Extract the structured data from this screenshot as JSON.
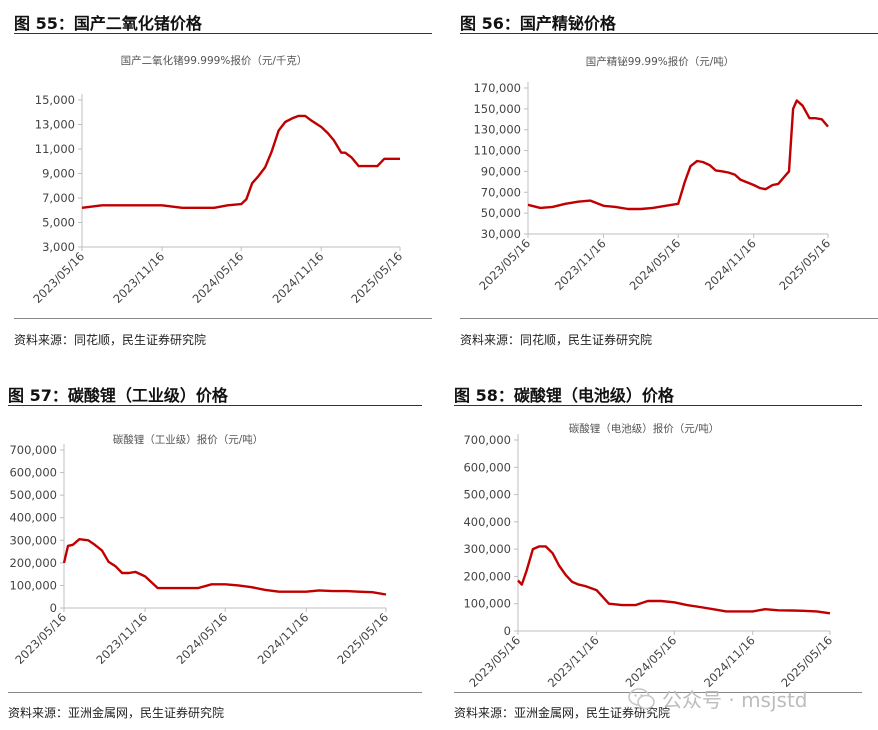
{
  "figures": [
    {
      "fig_title": "图 55：国产二氧化锗价格",
      "source": "资料来源：同花顺，民生证券研究院",
      "chart_data": {
        "type": "line",
        "title": "国产二氧化锗99.999%报价（元/千克）",
        "xlabel": "",
        "ylabel": "",
        "ylim": [
          3000,
          15000
        ],
        "yticks": [
          3000,
          5000,
          7000,
          9000,
          11000,
          13000,
          15000
        ],
        "ytick_labels": [
          "3,000",
          "5,000",
          "7,000",
          "9,000",
          "11,000",
          "13,000",
          "15,000"
        ],
        "xtick_labels": [
          "2023/05/16",
          "2023/11/16",
          "2024/05/16",
          "2024/11/16",
          "2025/05/16"
        ],
        "x_start": "2023/05/16",
        "x_end": "2025/05/16",
        "grid": false,
        "color": "#c00000",
        "series": [
          {
            "x": [
              "2023/05/16",
              "2023/07/01",
              "2023/08/15",
              "2023/10/01",
              "2023/11/16",
              "2024/01/01",
              "2024/02/15",
              "2024/03/15",
              "2024/04/15",
              "2024/05/16",
              "2024/05/28",
              "2024/06/10",
              "2024/06/25",
              "2024/07/10",
              "2024/07/25",
              "2024/08/10",
              "2024/08/25",
              "2024/09/10",
              "2024/09/25",
              "2024/10/10",
              "2024/10/25",
              "2024/11/16",
              "2024/12/01",
              "2024/12/15",
              "2025/01/01",
              "2025/01/10",
              "2025/01/25",
              "2025/02/10",
              "2025/02/25",
              "2025/03/10",
              "2025/03/25",
              "2025/04/10",
              "2025/04/25",
              "2025/05/01",
              "2025/05/16"
            ],
            "y": [
              6200,
              6400,
              6400,
              6400,
              6400,
              6200,
              6200,
              6200,
              6400,
              6500,
              6900,
              8200,
              8800,
              9500,
              10800,
              12500,
              13200,
              13500,
              13700,
              13700,
              13300,
              12800,
              12300,
              11700,
              10700,
              10700,
              10300,
              9600,
              9600,
              9600,
              9600,
              10200,
              10200,
              10200,
              10200
            ]
          }
        ]
      }
    },
    {
      "fig_title": "图 56：国产精铋价格",
      "source": "资料来源：同花顺，民生证券研究院",
      "chart_data": {
        "type": "line",
        "title": "国产精铋99.99%报价（元/吨）",
        "xlabel": "",
        "ylabel": "",
        "ylim": [
          30000,
          170000
        ],
        "yticks": [
          30000,
          50000,
          70000,
          90000,
          110000,
          130000,
          150000,
          170000
        ],
        "ytick_labels": [
          "30,000",
          "50,000",
          "70,000",
          "90,000",
          "110,000",
          "130,000",
          "150,000",
          "170,000"
        ],
        "xtick_labels": [
          "2023/05/16",
          "2023/11/16",
          "2024/05/16",
          "2024/11/16",
          "2025/05/16"
        ],
        "x_start": "2023/05/16",
        "x_end": "2025/05/16",
        "grid": false,
        "color": "#c00000",
        "series": [
          {
            "x": [
              "2023/05/16",
              "2023/06/15",
              "2023/07/15",
              "2023/08/15",
              "2023/09/15",
              "2023/10/15",
              "2023/11/16",
              "2023/12/15",
              "2024/01/15",
              "2024/02/15",
              "2024/03/15",
              "2024/04/15",
              "2024/05/16",
              "2024/06/01",
              "2024/06/15",
              "2024/07/01",
              "2024/07/15",
              "2024/08/01",
              "2024/08/15",
              "2024/09/01",
              "2024/09/15",
              "2024/10/01",
              "2024/10/15",
              "2024/11/16",
              "2024/12/01",
              "2024/12/15",
              "2025/01/01",
              "2025/01/15",
              "2025/02/01",
              "2025/02/10",
              "2025/02/20",
              "2025/03/01",
              "2025/03/15",
              "2025/04/01",
              "2025/04/15",
              "2025/05/01",
              "2025/05/16"
            ],
            "y": [
              58000,
              55000,
              56000,
              59000,
              61000,
              62000,
              57000,
              56000,
              54000,
              54000,
              55000,
              57000,
              59000,
              80000,
              95000,
              100000,
              99000,
              96000,
              91000,
              90000,
              89000,
              87000,
              82000,
              77000,
              74000,
              73000,
              77000,
              78000,
              86000,
              90000,
              150000,
              158000,
              153000,
              141000,
              141000,
              140000,
              133000
            ]
          }
        ]
      }
    },
    {
      "fig_title": "图 57：碳酸锂（工业级）价格",
      "source": "资料来源：亚洲金属网，民生证券研究院",
      "chart_data": {
        "type": "line",
        "title": "碳酸锂（工业级）报价（元/吨）",
        "xlabel": "",
        "ylabel": "",
        "ylim": [
          0,
          700000
        ],
        "yticks": [
          0,
          100000,
          200000,
          300000,
          400000,
          500000,
          600000,
          700000
        ],
        "ytick_labels": [
          "0",
          "100,000",
          "200,000",
          "300,000",
          "400,000",
          "500,000",
          "600,000",
          "700,000"
        ],
        "xtick_labels": [
          "2023/05/16",
          "2023/11/16",
          "2024/05/16",
          "2024/11/16",
          "2025/05/16"
        ],
        "x_start": "2023/05/16",
        "x_end": "2025/05/16",
        "grid": false,
        "color": "#c00000",
        "series": [
          {
            "x": [
              "2023/05/16",
              "2023/05/25",
              "2023/06/05",
              "2023/06/20",
              "2023/07/10",
              "2023/07/25",
              "2023/08/10",
              "2023/08/25",
              "2023/09/10",
              "2023/09/25",
              "2023/10/10",
              "2023/10/25",
              "2023/11/16",
              "2023/12/15",
              "2024/01/15",
              "2024/02/15",
              "2024/03/15",
              "2024/04/15",
              "2024/05/16",
              "2024/06/15",
              "2024/07/15",
              "2024/08/15",
              "2024/09/15",
              "2024/10/15",
              "2024/11/16",
              "2024/12/15",
              "2025/01/15",
              "2025/02/15",
              "2025/03/15",
              "2025/04/15",
              "2025/05/16"
            ],
            "y": [
              200000,
              275000,
              280000,
              305000,
              300000,
              280000,
              255000,
              205000,
              185000,
              155000,
              155000,
              160000,
              140000,
              88000,
              88000,
              88000,
              88000,
              105000,
              105000,
              100000,
              92000,
              80000,
              72000,
              72000,
              72000,
              78000,
              75000,
              75000,
              72000,
              70000,
              60000
            ]
          }
        ]
      }
    },
    {
      "fig_title": "图 58：碳酸锂（电池级）价格",
      "source": "资料来源：亚洲金属网，民生证券研究院",
      "chart_data": {
        "type": "line",
        "title": "碳酸锂（电池级）报价（元/吨）",
        "xlabel": "",
        "ylabel": "",
        "ylim": [
          0,
          700000
        ],
        "yticks": [
          0,
          100000,
          200000,
          300000,
          400000,
          500000,
          600000,
          700000
        ],
        "ytick_labels": [
          "0",
          "100,000",
          "200,000",
          "300,000",
          "400,000",
          "500,000",
          "600,000",
          "700,000"
        ],
        "xtick_labels": [
          "2023/05/16",
          "2023/11/16",
          "2024/05/16",
          "2024/11/16",
          "2025/05/16"
        ],
        "x_start": "2023/05/16",
        "x_end": "2025/05/16",
        "grid": false,
        "color": "#c00000",
        "series": [
          {
            "x": [
              "2023/05/16",
              "2023/05/25",
              "2023/06/05",
              "2023/06/20",
              "2023/07/05",
              "2023/07/20",
              "2023/08/05",
              "2023/08/20",
              "2023/09/05",
              "2023/09/20",
              "2023/10/05",
              "2023/10/20",
              "2023/11/16",
              "2023/12/15",
              "2024/01/15",
              "2024/02/15",
              "2024/03/15",
              "2024/04/15",
              "2024/05/16",
              "2024/06/15",
              "2024/07/15",
              "2024/08/15",
              "2024/09/15",
              "2024/10/15",
              "2024/11/16",
              "2024/12/15",
              "2025/01/15",
              "2025/02/15",
              "2025/03/15",
              "2025/04/15",
              "2025/05/16"
            ],
            "y": [
              185000,
              170000,
              220000,
              300000,
              310000,
              310000,
              285000,
              240000,
              205000,
              180000,
              170000,
              165000,
              150000,
              100000,
              95000,
              95000,
              110000,
              110000,
              105000,
              95000,
              88000,
              80000,
              72000,
              72000,
              72000,
              80000,
              76000,
              75000,
              74000,
              72000,
              65000
            ]
          }
        ]
      }
    }
  ],
  "watermark": "公众号 · msjstd"
}
